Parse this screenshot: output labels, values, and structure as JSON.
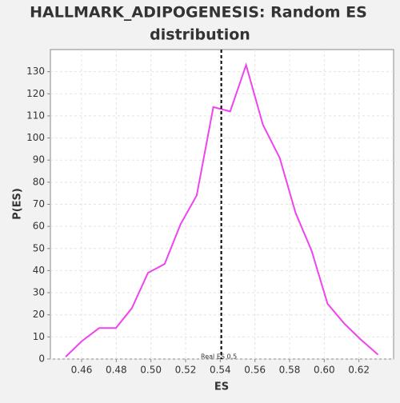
{
  "chart_data": {
    "type": "line",
    "title": [
      "HALLMARK_ADIPOGENESIS: Random ES",
      "distribution"
    ],
    "x_label": "ES",
    "y_label": "P(ES)",
    "x": [
      0.4508,
      0.46,
      0.4701,
      0.4798,
      0.489,
      0.4983,
      0.5079,
      0.5171,
      0.5264,
      0.536,
      0.5457,
      0.5549,
      0.5646,
      0.5743,
      0.5835,
      0.5927,
      0.6019,
      0.6116,
      0.6208,
      0.631
    ],
    "series": [
      {
        "color": "#ee44ee",
        "values": [
          1,
          8,
          14,
          14,
          23,
          39,
          43,
          61,
          74,
          114,
          112,
          133,
          106,
          91,
          66,
          49,
          25,
          16,
          9,
          2
        ]
      }
    ],
    "real_es": 0.5406,
    "real_es_label": "Real ES 0.5",
    "xlim": [
      0.442,
      0.64
    ],
    "ylim": [
      0,
      140
    ],
    "xticks": [
      0.46,
      0.48,
      {
        "value": 0.5,
        "label": "0.50"
      },
      0.52,
      0.54,
      0.56,
      0.58,
      {
        "value": 0.6,
        "label": "0.60"
      },
      0.62
    ],
    "yticks": [
      0,
      10,
      20,
      30,
      40,
      50,
      60,
      70,
      80,
      90,
      100,
      110,
      120,
      130
    ],
    "grid": true
  }
}
